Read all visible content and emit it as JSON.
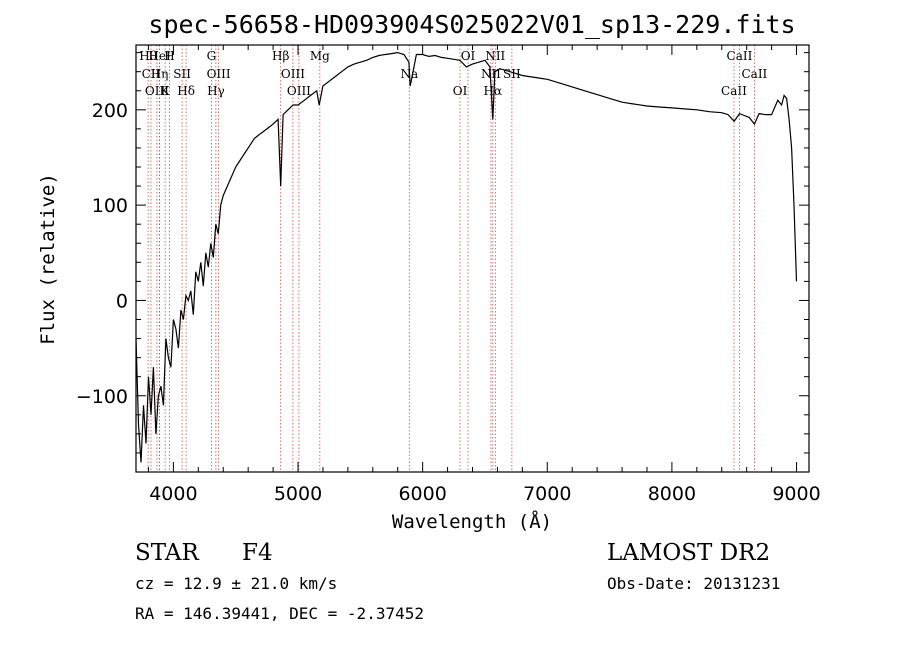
{
  "chart_data": {
    "type": "line",
    "title": "spec-56658-HD093904S025022V01_sp13-229.fits",
    "xlabel": "Wavelength (Å)",
    "ylabel": "Flux (relative)",
    "xlim": [
      3700,
      9100
    ],
    "ylim": [
      -180,
      268
    ],
    "x_ticks": [
      4000,
      5000,
      6000,
      7000,
      8000,
      9000
    ],
    "y_ticks": [
      -100,
      0,
      100,
      200
    ],
    "grid": false,
    "series": [
      {
        "x": [
          3700,
          3720,
          3740,
          3760,
          3780,
          3800,
          3820,
          3840,
          3860,
          3880,
          3900,
          3920,
          3940,
          3960,
          3980,
          4000,
          4020,
          4040,
          4060,
          4080,
          4100,
          4120,
          4140,
          4160,
          4180,
          4200,
          4220,
          4240,
          4260,
          4280,
          4300,
          4320,
          4340,
          4360,
          4380,
          4400,
          4450,
          4500,
          4550,
          4600,
          4650,
          4700,
          4750,
          4800,
          4840,
          4861,
          4880,
          4920,
          4960,
          5000,
          5050,
          5100,
          5150,
          5170,
          5200,
          5250,
          5300,
          5350,
          5400,
          5450,
          5500,
          5550,
          5600,
          5650,
          5700,
          5750,
          5800,
          5850,
          5890,
          5900,
          5950,
          6000,
          6050,
          6100,
          6150,
          6200,
          6250,
          6300,
          6350,
          6400,
          6450,
          6500,
          6540,
          6563,
          6580,
          6620,
          6650,
          6700,
          6750,
          6800,
          6850,
          6900,
          6950,
          7000,
          7100,
          7200,
          7300,
          7400,
          7500,
          7600,
          7700,
          7800,
          7900,
          8000,
          8100,
          8200,
          8300,
          8400,
          8450,
          8500,
          8542,
          8580,
          8620,
          8662,
          8700,
          8750,
          8800,
          8850,
          8880,
          8900,
          8920,
          8940,
          8960,
          8980,
          9000
        ],
        "values": [
          -40,
          -130,
          -170,
          -110,
          -150,
          -80,
          -120,
          -70,
          -140,
          -100,
          -90,
          -110,
          -40,
          -60,
          -70,
          -20,
          -30,
          -50,
          -10,
          -20,
          5,
          0,
          10,
          -15,
          30,
          20,
          40,
          15,
          50,
          35,
          60,
          45,
          80,
          70,
          100,
          110,
          125,
          140,
          150,
          160,
          170,
          175,
          180,
          185,
          190,
          120,
          195,
          200,
          205,
          205,
          210,
          215,
          220,
          205,
          225,
          230,
          235,
          240,
          245,
          248,
          250,
          252,
          255,
          257,
          258,
          259,
          260,
          258,
          250,
          225,
          258,
          258,
          256,
          257,
          255,
          254,
          253,
          252,
          245,
          248,
          250,
          252,
          245,
          190,
          240,
          243,
          242,
          240,
          238,
          236,
          235,
          234,
          233,
          232,
          228,
          224,
          220,
          216,
          212,
          208,
          206,
          204,
          203,
          202,
          201,
          200,
          198,
          197,
          195,
          188,
          196,
          194,
          192,
          185,
          196,
          195,
          195,
          210,
          205,
          215,
          212,
          190,
          160,
          100,
          20
        ]
      }
    ],
    "lines": [
      {
        "label": "Hθ",
        "x": 3797
      },
      {
        "label": "CII",
        "x": 3820
      },
      {
        "label": "OIII",
        "x": 3868
      },
      {
        "label": "HeI",
        "x": 3889
      },
      {
        "label": "Hη",
        "x": 3889
      },
      {
        "label": "K",
        "x": 3934
      },
      {
        "label": "H",
        "x": 3969
      },
      {
        "label": "SII",
        "x": 4070
      },
      {
        "label": "Hδ",
        "x": 4102
      },
      {
        "label": "G",
        "x": 4305
      },
      {
        "label": "OIII",
        "x": 4363
      },
      {
        "label": "Hγ",
        "x": 4341
      },
      {
        "label": "Hβ",
        "x": 4861
      },
      {
        "label": "OIII",
        "x": 4959
      },
      {
        "label": "OIII",
        "x": 5007
      },
      {
        "label": "Mg",
        "x": 5175
      },
      {
        "label": "Na",
        "x": 5893
      },
      {
        "label": "OI",
        "x": 6300
      },
      {
        "label": "OI",
        "x": 6364
      },
      {
        "label": "NII",
        "x": 6548
      },
      {
        "label": "Hα",
        "x": 6563
      },
      {
        "label": "NII",
        "x": 6583
      },
      {
        "label": "SII",
        "x": 6716
      },
      {
        "label": "CaII",
        "x": 8498
      },
      {
        "label": "CaII",
        "x": 8542
      },
      {
        "label": "CaII",
        "x": 8662
      }
    ]
  },
  "info": {
    "object_type": "STAR",
    "subclass": "F4",
    "survey": "LAMOST DR2",
    "cz": "cz = 12.9 ± 21.0 km/s",
    "obs_date": "Obs-Date: 20131231",
    "radec": "RA = 146.39441, DEC =  -2.37452"
  }
}
